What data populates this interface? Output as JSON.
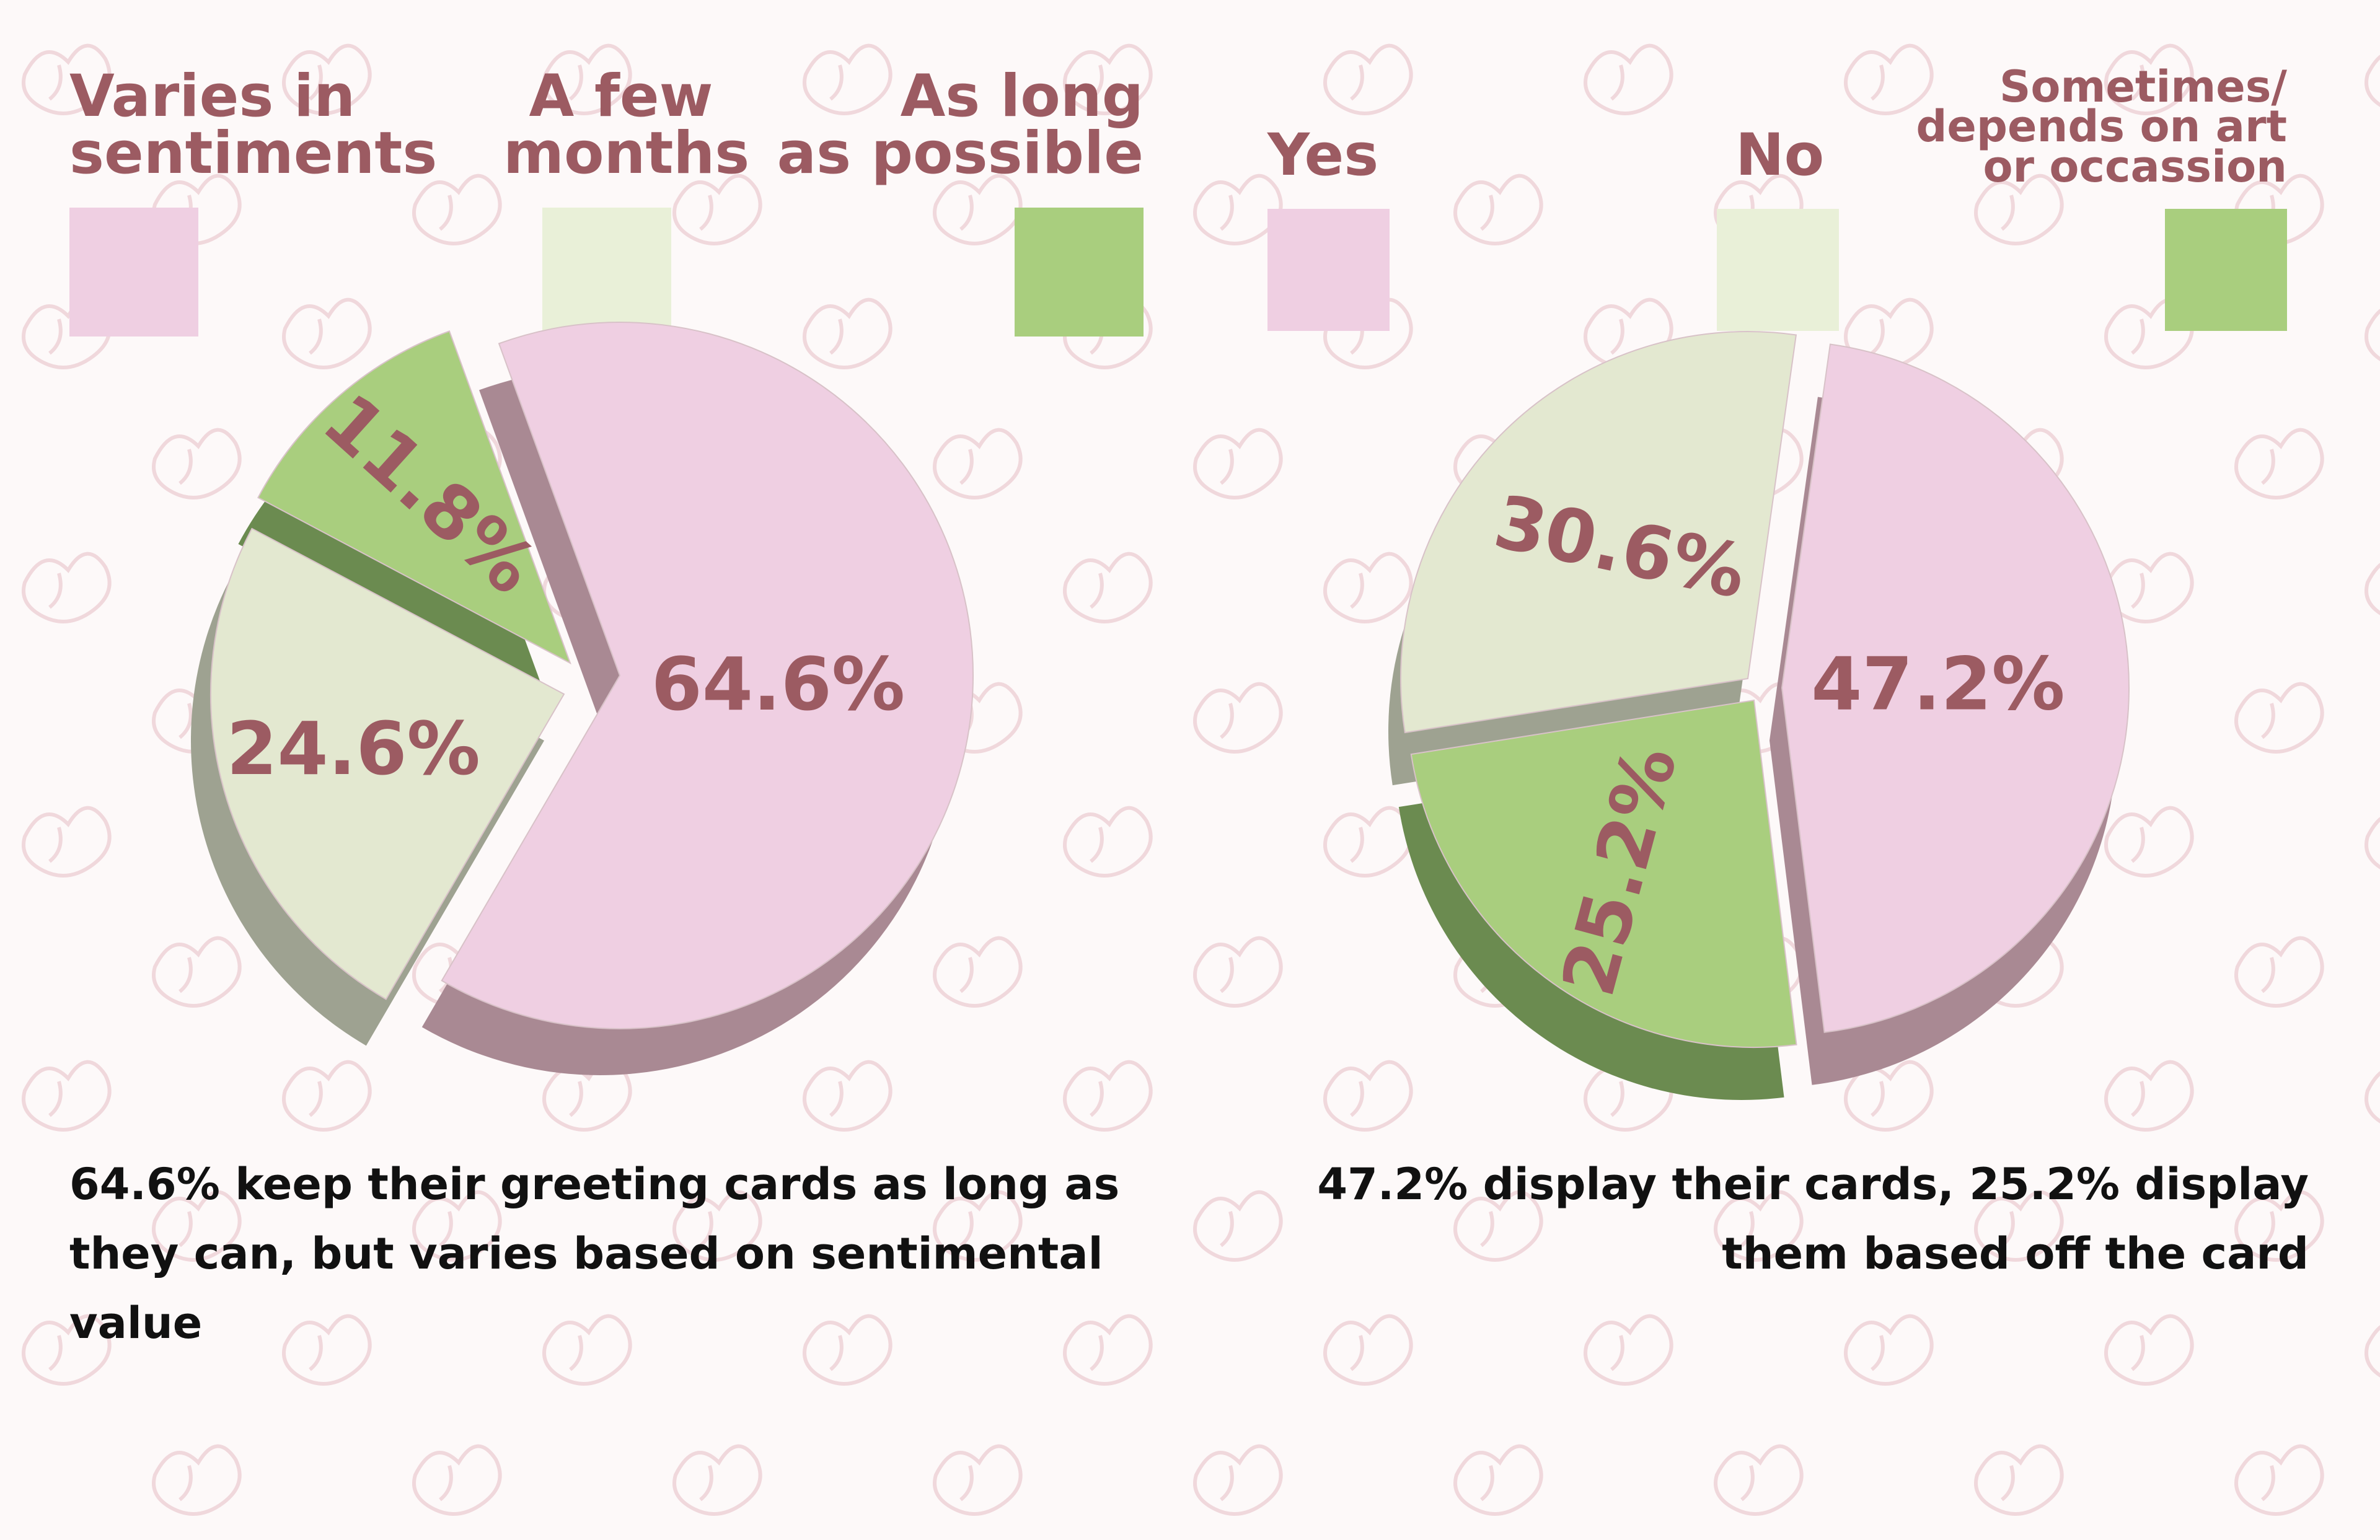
{
  "colors": {
    "pink": "#efcfe2",
    "pink_side": "#a98993",
    "cream": "#e3e8d0",
    "cream_side": "#9ea291",
    "green": "#a9ce7e",
    "green_side": "#6b8b50",
    "label_text": "#9c5b62",
    "caption_text": "#111111",
    "pattern_stroke": "#f0d8dc"
  },
  "chart_data": [
    {
      "type": "pie",
      "legend": [
        {
          "label": "Varies in\nsentiments",
          "color": "pink"
        },
        {
          "label": "A few\nmonths",
          "color": "cream"
        },
        {
          "label": "As long\nas possible",
          "color": "green"
        }
      ],
      "slices": [
        {
          "name": "Varies in sentiments",
          "value": 64.6,
          "label": "64.6%",
          "color": "pink"
        },
        {
          "name": "A few months",
          "value": 24.6,
          "label": "24.6%",
          "color": "cream"
        },
        {
          "name": "As long as possible",
          "value": 11.8,
          "label": "11.8%",
          "color": "green"
        }
      ],
      "caption": "64.6% keep their greeting cards as long  as they can, but varies based on sentimental value"
    },
    {
      "type": "pie",
      "legend": [
        {
          "label": "Yes",
          "color": "pink"
        },
        {
          "label": "No",
          "color": "cream"
        },
        {
          "label": "Sometimes/\ndepends on art\nor occassion",
          "color": "green"
        }
      ],
      "slices": [
        {
          "name": "Yes",
          "value": 47.2,
          "label": "47.2%",
          "color": "pink"
        },
        {
          "name": "Sometimes/depends on art or occassion",
          "value": 25.2,
          "label": "25.2%",
          "color": "green"
        },
        {
          "name": "No",
          "value": 30.6,
          "label": "30.6%",
          "color": "cream"
        }
      ],
      "caption": "47.2% display their cards, 25.2% display them based off the card"
    }
  ]
}
